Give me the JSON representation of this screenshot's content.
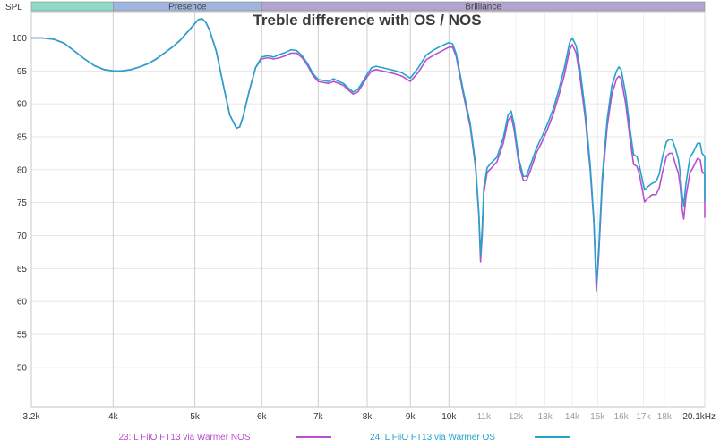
{
  "chart_data": {
    "type": "line",
    "title": "Treble difference with OS / NOS",
    "ylabel": "SPL",
    "xlabel": "",
    "x_scale": "log",
    "xlim": [
      3200,
      20100
    ],
    "ylim": [
      44,
      104
    ],
    "grid": true,
    "legend_placement": "bottom",
    "y_ticks": [
      100,
      95,
      90,
      85,
      80,
      75,
      70,
      65,
      60,
      55,
      50
    ],
    "x_ticks_major": [
      {
        "value": 3200,
        "label": "3.2k"
      },
      {
        "value": 4000,
        "label": "4k"
      },
      {
        "value": 5000,
        "label": "5k"
      },
      {
        "value": 6000,
        "label": "6k"
      },
      {
        "value": 7000,
        "label": "7k"
      },
      {
        "value": 8000,
        "label": "8k"
      },
      {
        "value": 9000,
        "label": "9k"
      },
      {
        "value": 10000,
        "label": "10k"
      }
    ],
    "x_ticks_minor": [
      {
        "value": 11000,
        "label": "11k"
      },
      {
        "value": 12000,
        "label": "12k"
      },
      {
        "value": 13000,
        "label": "13k"
      },
      {
        "value": 14000,
        "label": "14k"
      },
      {
        "value": 15000,
        "label": "15k"
      },
      {
        "value": 16000,
        "label": "16k"
      },
      {
        "value": 17000,
        "label": "17k"
      },
      {
        "value": 18000,
        "label": "18k"
      },
      {
        "value": 20100,
        "label": "20.1kHz"
      }
    ],
    "bands": [
      {
        "label": "",
        "from": 3200,
        "to": 4000,
        "color": "#8fd9c9"
      },
      {
        "label": "Presence",
        "from": 4000,
        "to": 6000,
        "color": "#9fb5dd"
      },
      {
        "label": "Brilliance",
        "from": 6000,
        "to": 20100,
        "color": "#b3a3d0"
      }
    ],
    "series": [
      {
        "name": "23: L FiiO FT13 via Warmer NOS",
        "color": "#b84fd1",
        "points": [
          [
            3200,
            100.0
          ],
          [
            3300,
            100.0
          ],
          [
            3400,
            99.8
          ],
          [
            3500,
            99.2
          ],
          [
            3600,
            98.0
          ],
          [
            3700,
            96.8
          ],
          [
            3800,
            95.8
          ],
          [
            3900,
            95.2
          ],
          [
            4000,
            95.0
          ],
          [
            4100,
            95.0
          ],
          [
            4200,
            95.2
          ],
          [
            4300,
            95.6
          ],
          [
            4400,
            96.1
          ],
          [
            4500,
            96.8
          ],
          [
            4600,
            97.7
          ],
          [
            4700,
            98.6
          ],
          [
            4800,
            99.6
          ],
          [
            4900,
            100.9
          ],
          [
            5000,
            102.2
          ],
          [
            5050,
            102.8
          ],
          [
            5100,
            102.9
          ],
          [
            5150,
            102.4
          ],
          [
            5200,
            101.3
          ],
          [
            5300,
            98.0
          ],
          [
            5400,
            93.0
          ],
          [
            5500,
            88.3
          ],
          [
            5600,
            86.3
          ],
          [
            5650,
            86.5
          ],
          [
            5700,
            88.0
          ],
          [
            5800,
            92.0
          ],
          [
            5900,
            95.5
          ],
          [
            6000,
            96.8
          ],
          [
            6100,
            97.0
          ],
          [
            6200,
            96.8
          ],
          [
            6300,
            97.0
          ],
          [
            6400,
            97.3
          ],
          [
            6500,
            97.7
          ],
          [
            6600,
            97.7
          ],
          [
            6700,
            97.0
          ],
          [
            6800,
            95.8
          ],
          [
            6900,
            94.3
          ],
          [
            7000,
            93.4
          ],
          [
            7200,
            93.1
          ],
          [
            7300,
            93.4
          ],
          [
            7400,
            93.1
          ],
          [
            7500,
            92.8
          ],
          [
            7600,
            92.1
          ],
          [
            7700,
            91.5
          ],
          [
            7800,
            91.8
          ],
          [
            7900,
            92.9
          ],
          [
            8000,
            94.1
          ],
          [
            8100,
            95.0
          ],
          [
            8200,
            95.2
          ],
          [
            8400,
            94.9
          ],
          [
            8600,
            94.6
          ],
          [
            8800,
            94.2
          ],
          [
            9000,
            93.4
          ],
          [
            9200,
            94.8
          ],
          [
            9400,
            96.7
          ],
          [
            9600,
            97.4
          ],
          [
            9800,
            98.0
          ],
          [
            10000,
            98.6
          ],
          [
            10100,
            98.6
          ],
          [
            10200,
            97.2
          ],
          [
            10400,
            91.5
          ],
          [
            10600,
            86.5
          ],
          [
            10750,
            80.5
          ],
          [
            10850,
            73.0
          ],
          [
            10900,
            66.0
          ],
          [
            10950,
            70.0
          ],
          [
            11000,
            76.5
          ],
          [
            11100,
            79.6
          ],
          [
            11200,
            80.1
          ],
          [
            11400,
            81.2
          ],
          [
            11600,
            84.0
          ],
          [
            11750,
            87.5
          ],
          [
            11850,
            88.1
          ],
          [
            11950,
            86.0
          ],
          [
            12100,
            81.0
          ],
          [
            12250,
            78.4
          ],
          [
            12350,
            78.3
          ],
          [
            12500,
            80.0
          ],
          [
            12700,
            82.6
          ],
          [
            12900,
            84.3
          ],
          [
            13100,
            86.3
          ],
          [
            13300,
            88.5
          ],
          [
            13500,
            91.3
          ],
          [
            13700,
            94.3
          ],
          [
            13900,
            98.2
          ],
          [
            14000,
            99.0
          ],
          [
            14150,
            97.7
          ],
          [
            14300,
            94.0
          ],
          [
            14500,
            88.0
          ],
          [
            14700,
            80.0
          ],
          [
            14850,
            72.0
          ],
          [
            14950,
            61.5
          ],
          [
            15050,
            67.0
          ],
          [
            15200,
            78.0
          ],
          [
            15400,
            86.5
          ],
          [
            15600,
            91.5
          ],
          [
            15800,
            93.8
          ],
          [
            15900,
            94.2
          ],
          [
            16000,
            93.8
          ],
          [
            16200,
            90.0
          ],
          [
            16400,
            84.5
          ],
          [
            16550,
            80.8
          ],
          [
            16700,
            80.5
          ],
          [
            16800,
            79.5
          ],
          [
            16950,
            77.0
          ],
          [
            17050,
            75.1
          ],
          [
            17200,
            75.6
          ],
          [
            17400,
            76.2
          ],
          [
            17600,
            76.2
          ],
          [
            17750,
            77.2
          ],
          [
            17900,
            79.5
          ],
          [
            18100,
            82.0
          ],
          [
            18250,
            82.5
          ],
          [
            18400,
            82.5
          ],
          [
            18550,
            80.8
          ],
          [
            18700,
            79.5
          ],
          [
            18800,
            77.5
          ],
          [
            18900,
            74.0
          ],
          [
            18980,
            72.5
          ],
          [
            19100,
            76.0
          ],
          [
            19300,
            79.5
          ],
          [
            19500,
            80.5
          ],
          [
            19700,
            81.7
          ],
          [
            19850,
            81.5
          ],
          [
            19950,
            79.8
          ],
          [
            20100,
            79.2
          ],
          [
            20250,
            78.5
          ],
          [
            20400,
            77.2
          ],
          [
            20550,
            75.3
          ],
          [
            20700,
            72.7
          ]
        ]
      },
      {
        "name": "24: L FiiO FT13 via Warmer OS",
        "color": "#23a3c9",
        "points": [
          [
            3200,
            100.0
          ],
          [
            3300,
            100.0
          ],
          [
            3400,
            99.8
          ],
          [
            3500,
            99.2
          ],
          [
            3600,
            98.0
          ],
          [
            3700,
            96.8
          ],
          [
            3800,
            95.8
          ],
          [
            3900,
            95.2
          ],
          [
            4000,
            95.0
          ],
          [
            4100,
            95.0
          ],
          [
            4200,
            95.2
          ],
          [
            4300,
            95.6
          ],
          [
            4400,
            96.1
          ],
          [
            4500,
            96.8
          ],
          [
            4600,
            97.7
          ],
          [
            4700,
            98.6
          ],
          [
            4800,
            99.6
          ],
          [
            4900,
            100.9
          ],
          [
            5000,
            102.2
          ],
          [
            5050,
            102.8
          ],
          [
            5100,
            102.9
          ],
          [
            5150,
            102.4
          ],
          [
            5200,
            101.3
          ],
          [
            5300,
            98.0
          ],
          [
            5400,
            93.0
          ],
          [
            5500,
            88.3
          ],
          [
            5600,
            86.3
          ],
          [
            5650,
            86.5
          ],
          [
            5700,
            88.0
          ],
          [
            5800,
            92.0
          ],
          [
            5900,
            95.5
          ],
          [
            6000,
            97.1
          ],
          [
            6100,
            97.3
          ],
          [
            6200,
            97.1
          ],
          [
            6300,
            97.5
          ],
          [
            6400,
            97.8
          ],
          [
            6500,
            98.2
          ],
          [
            6600,
            98.1
          ],
          [
            6700,
            97.3
          ],
          [
            6800,
            96.1
          ],
          [
            6900,
            94.6
          ],
          [
            7000,
            93.7
          ],
          [
            7200,
            93.4
          ],
          [
            7300,
            93.8
          ],
          [
            7400,
            93.4
          ],
          [
            7500,
            93.1
          ],
          [
            7600,
            92.4
          ],
          [
            7700,
            91.8
          ],
          [
            7800,
            92.2
          ],
          [
            7900,
            93.3
          ],
          [
            8000,
            94.5
          ],
          [
            8100,
            95.5
          ],
          [
            8200,
            95.7
          ],
          [
            8400,
            95.4
          ],
          [
            8600,
            95.1
          ],
          [
            8800,
            94.7
          ],
          [
            9000,
            93.9
          ],
          [
            9200,
            95.5
          ],
          [
            9400,
            97.4
          ],
          [
            9600,
            98.2
          ],
          [
            9800,
            98.8
          ],
          [
            10000,
            99.3
          ],
          [
            10100,
            99.1
          ],
          [
            10200,
            97.6
          ],
          [
            10400,
            92.0
          ],
          [
            10600,
            87.0
          ],
          [
            10750,
            81.0
          ],
          [
            10850,
            73.5
          ],
          [
            10900,
            67.0
          ],
          [
            10950,
            71.0
          ],
          [
            11000,
            77.3
          ],
          [
            11100,
            80.3
          ],
          [
            11200,
            80.9
          ],
          [
            11400,
            81.9
          ],
          [
            11600,
            84.8
          ],
          [
            11750,
            88.3
          ],
          [
            11850,
            88.9
          ],
          [
            11950,
            86.8
          ],
          [
            12100,
            81.7
          ],
          [
            12250,
            79.0
          ],
          [
            12350,
            79.0
          ],
          [
            12500,
            80.8
          ],
          [
            12700,
            83.3
          ],
          [
            12900,
            85.1
          ],
          [
            13100,
            87.1
          ],
          [
            13300,
            89.3
          ],
          [
            13500,
            92.2
          ],
          [
            13700,
            95.4
          ],
          [
            13900,
            99.3
          ],
          [
            14000,
            100.0
          ],
          [
            14150,
            98.8
          ],
          [
            14300,
            95.3
          ],
          [
            14500,
            89.0
          ],
          [
            14700,
            80.8
          ],
          [
            14850,
            72.5
          ],
          [
            14950,
            62.5
          ],
          [
            15050,
            68.0
          ],
          [
            15200,
            79.0
          ],
          [
            15400,
            87.6
          ],
          [
            15600,
            92.8
          ],
          [
            15800,
            95.0
          ],
          [
            15900,
            95.6
          ],
          [
            16000,
            95.2
          ],
          [
            16200,
            91.5
          ],
          [
            16400,
            86.0
          ],
          [
            16550,
            82.3
          ],
          [
            16700,
            82.0
          ],
          [
            16800,
            80.8
          ],
          [
            16950,
            78.5
          ],
          [
            17050,
            76.9
          ],
          [
            17200,
            77.4
          ],
          [
            17400,
            77.9
          ],
          [
            17600,
            78.2
          ],
          [
            17750,
            79.3
          ],
          [
            17900,
            81.8
          ],
          [
            18100,
            84.2
          ],
          [
            18250,
            84.6
          ],
          [
            18400,
            84.5
          ],
          [
            18550,
            83.2
          ],
          [
            18700,
            81.6
          ],
          [
            18800,
            79.5
          ],
          [
            18900,
            76.2
          ],
          [
            18980,
            74.5
          ],
          [
            19100,
            78.0
          ],
          [
            19300,
            81.8
          ],
          [
            19500,
            82.8
          ],
          [
            19700,
            84.0
          ],
          [
            19850,
            84.0
          ],
          [
            19950,
            82.5
          ],
          [
            20100,
            82.0
          ],
          [
            20250,
            81.2
          ],
          [
            20400,
            80.0
          ],
          [
            20550,
            77.8
          ],
          [
            20700,
            75.2
          ]
        ]
      }
    ]
  }
}
